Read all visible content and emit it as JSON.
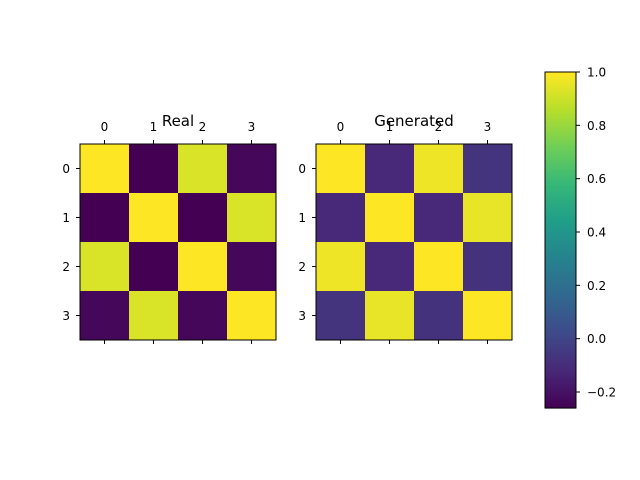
{
  "chart_data": [
    {
      "type": "heatmap",
      "title": "Real",
      "x_ticks": [
        "0",
        "1",
        "2",
        "3"
      ],
      "y_ticks": [
        "0",
        "1",
        "2",
        "3"
      ],
      "values": [
        [
          1.0,
          -0.26,
          0.93,
          -0.24
        ],
        [
          -0.26,
          1.0,
          -0.26,
          0.93
        ],
        [
          0.93,
          -0.26,
          1.0,
          -0.24
        ],
        [
          -0.24,
          0.93,
          -0.24,
          1.0
        ]
      ]
    },
    {
      "type": "heatmap",
      "title": "Generated",
      "x_ticks": [
        "0",
        "1",
        "2",
        "3"
      ],
      "y_ticks": [
        "0",
        "1",
        "2",
        "3"
      ],
      "values": [
        [
          1.0,
          -0.12,
          0.97,
          -0.07
        ],
        [
          -0.12,
          1.0,
          -0.12,
          0.96
        ],
        [
          0.97,
          -0.12,
          1.0,
          -0.08
        ],
        [
          -0.07,
          0.96,
          -0.08,
          1.0
        ]
      ]
    }
  ],
  "colorbar": {
    "colormap": "viridis",
    "vmin": -0.26,
    "vmax": 1.0,
    "ticks": [
      -0.2,
      0.0,
      0.2,
      0.4,
      0.6,
      0.8,
      1.0
    ],
    "tick_labels": [
      "−0.2",
      "0.0",
      "0.2",
      "0.4",
      "0.6",
      "0.8",
      "1.0"
    ]
  }
}
